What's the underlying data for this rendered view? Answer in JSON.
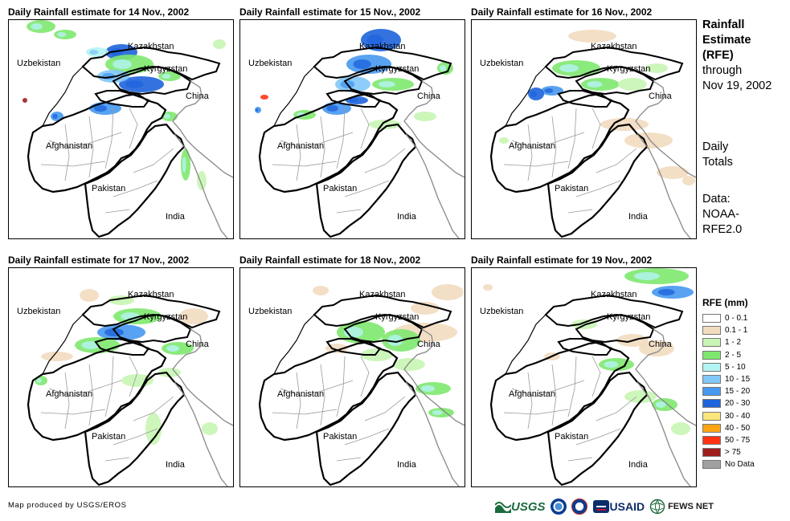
{
  "panels": [
    {
      "title": "Daily Rainfall estimate for 14 Nov., 2002",
      "day": 14
    },
    {
      "title": "Daily Rainfall estimate for 15 Nov., 2002",
      "day": 15
    },
    {
      "title": "Daily Rainfall estimate for 16 Nov., 2002",
      "day": 16
    },
    {
      "title": "Daily Rainfall estimate for 17 Nov., 2002",
      "day": 17
    },
    {
      "title": "Daily Rainfall estimate for 18 Nov., 2002",
      "day": 18
    },
    {
      "title": "Daily Rainfall estimate for 19 Nov., 2002",
      "day": 19
    }
  ],
  "country_labels": [
    "Kazakhstan",
    "Uzbekistan",
    "Kyrgyzstan",
    "China",
    "Afghanistan",
    "Pakistan",
    "India"
  ],
  "side_title": {
    "line1": "Rainfall",
    "line2": "Estimate",
    "line3": "(RFE)",
    "line4": "through",
    "line5": "Nov 19, 2002",
    "totals1": "Daily",
    "totals2": "Totals",
    "data1": "Data:",
    "data2": "NOAA-",
    "data3": "RFE2.0"
  },
  "legend": {
    "title": "RFE (mm)",
    "items": [
      {
        "label": "0 - 0.1",
        "color": "#ffffff"
      },
      {
        "label": "0.1 - 1",
        "color": "#f2dcc0"
      },
      {
        "label": "1 - 2",
        "color": "#c8f5b4"
      },
      {
        "label": "2 - 5",
        "color": "#7ee86e"
      },
      {
        "label": "5 - 10",
        "color": "#b4f4f4"
      },
      {
        "label": "10 - 15",
        "color": "#82c8f8"
      },
      {
        "label": "15 - 20",
        "color": "#4698f0"
      },
      {
        "label": "20 - 30",
        "color": "#1e64dc"
      },
      {
        "label": "30 - 40",
        "color": "#fae67a"
      },
      {
        "label": "40 - 50",
        "color": "#ffa514"
      },
      {
        "label": "50 - 75",
        "color": "#ff3214"
      },
      {
        "label": "> 75",
        "color": "#a01e1e"
      },
      {
        "label": "No Data",
        "color": "#a0a0a0"
      }
    ]
  },
  "footer": {
    "credit": "Map produced by USGS/EROS"
  },
  "logos": {
    "usgs": "USGS",
    "usaid": "USAID",
    "fews": "FEWS NET"
  }
}
